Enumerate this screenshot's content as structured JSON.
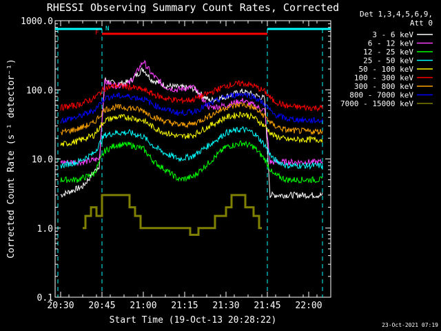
{
  "chart_data": {
    "type": "line",
    "title": "RHESSI Observing Summary Count Rates, Corrected",
    "xlabel": "Start Time (19-Oct-13 20:28:22)",
    "ylabel": "Corrected Count Rate (s⁻¹ detector⁻¹)",
    "yscale": "log",
    "xlim": [
      "20:28",
      "22:08"
    ],
    "ylim": [
      0.1,
      1000
    ],
    "x_ticks": [
      "20:30",
      "20:45",
      "21:00",
      "21:15",
      "21:30",
      "21:45",
      "22:00"
    ],
    "y_ticks": [
      "0.1",
      "1.0",
      "10.0",
      "100.0",
      "1000.0"
    ],
    "grid": false,
    "legend_position": "top-right",
    "legend_header": [
      "Det 1,3,4,5,6,9,",
      "Att 0"
    ],
    "series": [
      {
        "name": "3 - 6 keV",
        "color": "#ffffff",
        "x": [
          "20:30",
          "20:38",
          "20:44",
          "20:46",
          "20:50",
          "20:55",
          "20:58",
          "21:00",
          "21:03",
          "21:08",
          "21:12",
          "21:18",
          "21:24",
          "21:30",
          "21:36",
          "21:40",
          "21:44",
          "21:46",
          "21:52",
          "22:00",
          "22:05"
        ],
        "y": [
          3,
          4,
          8,
          140,
          120,
          130,
          170,
          200,
          140,
          115,
          110,
          105,
          70,
          80,
          95,
          85,
          75,
          3,
          3,
          3,
          3
        ]
      },
      {
        "name": "6 - 12 keV",
        "color": "#ff40ff",
        "x": [
          "20:30",
          "20:38",
          "20:44",
          "20:46",
          "20:50",
          "20:55",
          "20:58",
          "21:00",
          "21:03",
          "21:08",
          "21:12",
          "21:18",
          "21:24",
          "21:30",
          "21:36",
          "21:40",
          "21:44",
          "21:46",
          "21:52",
          "22:00",
          "22:05"
        ],
        "y": [
          9,
          9,
          10,
          130,
          115,
          125,
          190,
          260,
          170,
          110,
          100,
          110,
          55,
          60,
          70,
          60,
          50,
          9,
          9,
          9,
          9
        ]
      },
      {
        "name": "12 - 25 keV",
        "color": "#00ff00",
        "x": [
          "20:30",
          "20:36",
          "20:42",
          "20:46",
          "20:50",
          "20:55",
          "21:00",
          "21:04",
          "21:08",
          "21:13",
          "21:18",
          "21:24",
          "21:30",
          "21:36",
          "21:40",
          "21:44",
          "21:47",
          "21:52",
          "22:00",
          "22:05"
        ],
        "y": [
          5,
          5,
          6,
          13,
          16,
          16,
          14,
          9,
          7,
          5,
          5.5,
          9,
          15,
          17,
          15,
          10,
          6,
          5,
          5,
          5
        ]
      },
      {
        "name": "25 - 50 keV",
        "color": "#00ffff",
        "x": [
          "20:30",
          "20:36",
          "20:42",
          "20:46",
          "20:50",
          "20:55",
          "21:00",
          "21:04",
          "21:08",
          "21:13",
          "21:18",
          "21:24",
          "21:30",
          "21:36",
          "21:40",
          "21:44",
          "21:47",
          "21:52",
          "22:00",
          "22:05"
        ],
        "y": [
          8,
          9,
          12,
          22,
          24,
          24,
          21,
          15,
          12,
          10,
          11,
          16,
          24,
          27,
          24,
          16,
          10,
          8,
          8,
          8
        ]
      },
      {
        "name": "50 - 100 keV",
        "color": "#ffff00",
        "x": [
          "20:30",
          "20:36",
          "20:42",
          "20:46",
          "20:50",
          "20:55",
          "21:00",
          "21:04",
          "21:08",
          "21:13",
          "21:18",
          "21:24",
          "21:30",
          "21:36",
          "21:40",
          "21:44",
          "21:47",
          "21:52",
          "22:00",
          "22:05"
        ],
        "y": [
          16,
          18,
          22,
          36,
          40,
          40,
          36,
          28,
          24,
          21,
          22,
          30,
          40,
          45,
          40,
          30,
          22,
          19,
          19,
          19
        ]
      },
      {
        "name": "100 - 300 keV",
        "color": "#ff0000",
        "x": [
          "20:30",
          "20:36",
          "20:42",
          "20:46",
          "20:50",
          "20:55",
          "21:00",
          "21:04",
          "21:08",
          "21:13",
          "21:18",
          "21:24",
          "21:30",
          "21:36",
          "21:40",
          "21:44",
          "21:47",
          "21:52",
          "22:00",
          "22:05"
        ],
        "y": [
          55,
          60,
          75,
          105,
          115,
          110,
          100,
          85,
          75,
          70,
          72,
          90,
          115,
          125,
          115,
          95,
          70,
          58,
          55,
          55
        ]
      },
      {
        "name": "300 - 800 keV",
        "color": "#ffa500",
        "x": [
          "20:30",
          "20:36",
          "20:42",
          "20:46",
          "20:50",
          "20:55",
          "21:00",
          "21:04",
          "21:08",
          "21:13",
          "21:18",
          "21:24",
          "21:30",
          "21:36",
          "21:40",
          "21:44",
          "21:47",
          "21:52",
          "22:00",
          "22:05"
        ],
        "y": [
          24,
          27,
          33,
          52,
          56,
          55,
          50,
          40,
          35,
          31,
          32,
          42,
          56,
          62,
          55,
          42,
          31,
          26,
          25,
          25
        ]
      },
      {
        "name": "800 - 7000 keV",
        "color": "#0000ff",
        "x": [
          "20:30",
          "20:36",
          "20:42",
          "20:46",
          "20:50",
          "20:55",
          "21:00",
          "21:04",
          "21:08",
          "21:13",
          "21:18",
          "21:24",
          "21:30",
          "21:36",
          "21:40",
          "21:44",
          "21:47",
          "21:52",
          "22:00",
          "22:05"
        ],
        "y": [
          36,
          40,
          50,
          76,
          82,
          80,
          74,
          60,
          52,
          46,
          48,
          62,
          80,
          88,
          80,
          62,
          45,
          38,
          36,
          36
        ]
      },
      {
        "name": "7000 - 15000 keV",
        "color": "#808000",
        "x": [
          "20:38",
          "20:39",
          "20:41",
          "20:43",
          "20:45",
          "20:47",
          "20:50",
          "20:53",
          "20:55",
          "20:57",
          "20:59",
          "21:02",
          "21:05",
          "21:08",
          "21:12",
          "21:17",
          "21:20",
          "21:22",
          "21:24",
          "21:26",
          "21:28",
          "21:30",
          "21:32",
          "21:35",
          "21:37",
          "21:38",
          "21:40",
          "21:41",
          "21:42",
          "21:43"
        ],
        "y": [
          1.0,
          1.5,
          2,
          1.5,
          3,
          3,
          3,
          3,
          2,
          1.5,
          1,
          1,
          1,
          1,
          1,
          0.8,
          1,
          1,
          1,
          1.5,
          1.5,
          2,
          3,
          3,
          2,
          2,
          1.5,
          1.5,
          1,
          1
        ]
      }
    ],
    "annotations": {
      "night_line": {
        "label": "N",
        "color": "#00ffff",
        "ranges": [
          [
            "20:28",
            "20:45"
          ],
          [
            "21:45",
            "22:08"
          ]
        ]
      },
      "flare_line": {
        "label": "F",
        "color": "#ff0000",
        "ranges": [
          [
            "20:45",
            "21:45"
          ]
        ]
      },
      "dashed_markers": [
        "20:29",
        "20:45",
        "21:45",
        "22:05"
      ],
      "timestamp": "23-Oct-2021 07:19"
    }
  }
}
